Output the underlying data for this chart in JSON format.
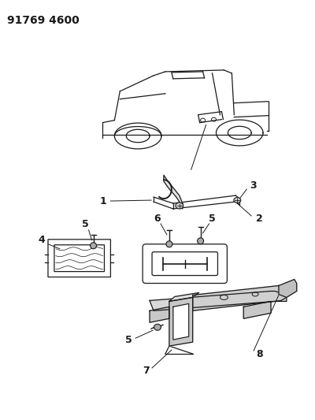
{
  "title": "91769 4600",
  "bg_color": "#ffffff",
  "line_color": "#1a1a1a",
  "title_fontsize": 10,
  "figsize": [
    4.0,
    5.33
  ],
  "dpi": 100
}
